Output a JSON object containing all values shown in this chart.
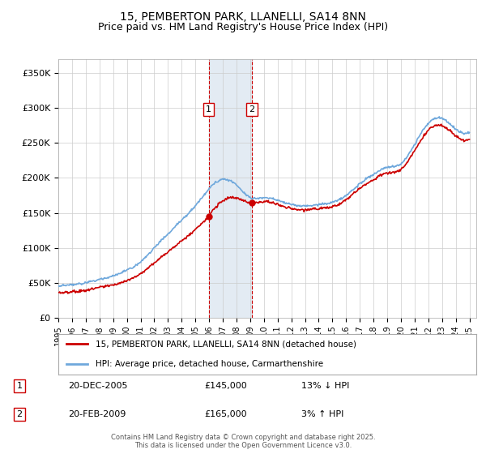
{
  "title1": "15, PEMBERTON PARK, LLANELLI, SA14 8NN",
  "title2": "Price paid vs. HM Land Registry's House Price Index (HPI)",
  "ylabel_ticks": [
    "£0",
    "£50K",
    "£100K",
    "£150K",
    "£200K",
    "£250K",
    "£300K",
    "£350K"
  ],
  "ytick_values": [
    0,
    50000,
    100000,
    150000,
    200000,
    250000,
    300000,
    350000
  ],
  "ylim": [
    0,
    370000
  ],
  "xlim_start": 1995,
  "xlim_end": 2025.5,
  "grid_color": "#cccccc",
  "hpi_color": "#6fa8dc",
  "price_color": "#cc0000",
  "shade_color": "#dce6f1",
  "transaction1": {
    "date": "2005-12-20",
    "price": 145000,
    "label": "1",
    "x": 2005.97
  },
  "transaction2": {
    "date": "2009-02-20",
    "price": 165000,
    "label": "2",
    "x": 2009.13
  },
  "legend_label1": "15, PEMBERTON PARK, LLANELLI, SA14 8NN (detached house)",
  "legend_label2": "HPI: Average price, detached house, Carmarthenshire",
  "annotation1": "20-DEC-2005    £145,000    13% ↓ HPI",
  "annotation2": "20-FEB-2009    £165,000    3% ↑ HPI",
  "footer": "Contains HM Land Registry data © Crown copyright and database right 2025.\nThis data is licensed under the Open Government Licence v3.0.",
  "background_color": "#ffffff"
}
